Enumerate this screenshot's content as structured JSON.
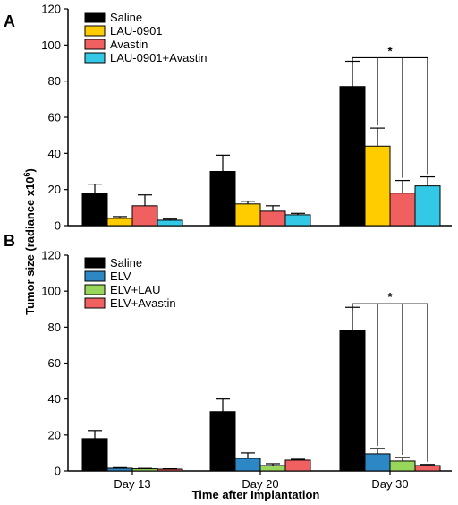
{
  "figure": {
    "ylabel_main": "Tumor size (radiance x10",
    "ylabel_exp": "6",
    "ylabel_close": ")",
    "xlabel": "Time after Implantation"
  },
  "chart_data": [
    {
      "type": "bar",
      "panel_label": "A",
      "categories": [
        "Day 13",
        "Day 20",
        "Day 30"
      ],
      "ylim": [
        0,
        120
      ],
      "yticks": [
        "0",
        "20",
        "40",
        "60",
        "80",
        "100",
        "120"
      ],
      "legend_position": "top-left",
      "series": [
        {
          "name": "Saline",
          "color": "#000000",
          "values": [
            18,
            30,
            77
          ],
          "errors": [
            5,
            9,
            14
          ]
        },
        {
          "name": "LAU-0901",
          "color": "#ffcc00",
          "values": [
            4,
            12,
            44
          ],
          "errors": [
            1,
            1.5,
            10
          ]
        },
        {
          "name": "Avastin",
          "color": "#f06060",
          "values": [
            11,
            8,
            18
          ],
          "errors": [
            6,
            3,
            7
          ]
        },
        {
          "name": "LAU-0901+Avastin",
          "color": "#33c9e6",
          "values": [
            3,
            6,
            22
          ],
          "errors": [
            0.6,
            0.8,
            5
          ]
        }
      ],
      "significance": "*"
    },
    {
      "type": "bar",
      "panel_label": "B",
      "categories": [
        "Day 13",
        "Day 20",
        "Day 30"
      ],
      "ylim": [
        0,
        120
      ],
      "yticks": [
        "0",
        "20",
        "40",
        "60",
        "80",
        "100",
        "120"
      ],
      "legend_position": "top-left",
      "series": [
        {
          "name": "Saline",
          "color": "#000000",
          "values": [
            18,
            33,
            78
          ],
          "errors": [
            4.5,
            7,
            13
          ]
        },
        {
          "name": "ELV",
          "color": "#2d87c4",
          "values": [
            1.5,
            7,
            9.5
          ],
          "errors": [
            0.3,
            3,
            3
          ]
        },
        {
          "name": "ELV+LAU",
          "color": "#99d65c",
          "values": [
            1.2,
            3,
            5.5
          ],
          "errors": [
            0.2,
            1,
            2
          ]
        },
        {
          "name": "ELV+Avastin",
          "color": "#f06060",
          "values": [
            1,
            6,
            3
          ],
          "errors": [
            0.2,
            0.5,
            0.6
          ]
        }
      ],
      "significance": "*"
    }
  ]
}
